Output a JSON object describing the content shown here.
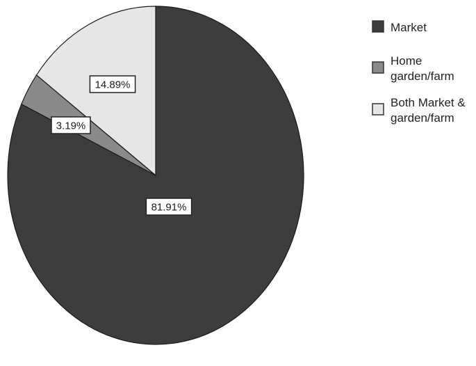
{
  "chart_data": {
    "type": "pie",
    "title": "",
    "labels": [
      "Market",
      "Home garden/farm",
      "Both Market & garden/farm"
    ],
    "legend_lines": [
      [
        "Market"
      ],
      [
        "Home",
        "garden/farm"
      ],
      [
        "Both Market &",
        "garden/farm"
      ]
    ],
    "values": [
      81.91,
      3.19,
      14.89
    ],
    "value_labels": [
      "81.91%",
      "3.19%",
      "14.89%"
    ],
    "colors": [
      "#3d3d3d",
      "#8a8a8a",
      "#e6e6e6"
    ],
    "start_angle": "12 o'clock",
    "direction": "clockwise",
    "legend_position": "top-right",
    "grid": false
  }
}
